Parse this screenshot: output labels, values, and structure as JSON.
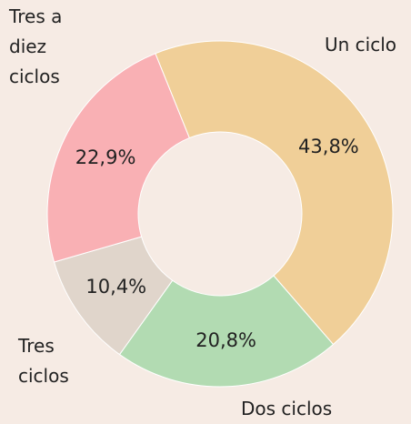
{
  "chart_data": {
    "type": "donut",
    "categories": [
      "Un ciclo",
      "Dos ciclos",
      "Tres ciclos",
      "Tres a diez ciclos"
    ],
    "values": [
      43.8,
      20.8,
      10.4,
      22.9
    ],
    "value_labels": [
      "43,8%",
      "20,8%",
      "10,4%",
      "22,9%"
    ],
    "colors": [
      "#f0cf98",
      "#b2dbb2",
      "#e0d5cb",
      "#f9b0b4"
    ]
  }
}
